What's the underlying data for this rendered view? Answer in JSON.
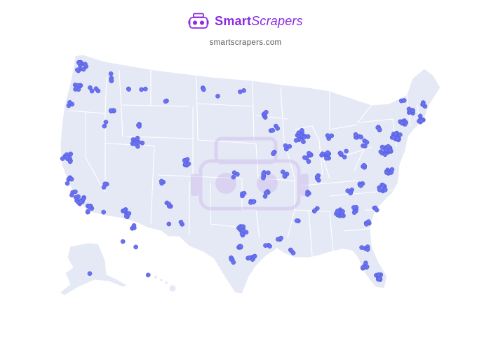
{
  "brand": {
    "name_part1": "Smart",
    "name_part2": "Scrapers",
    "domain": "smartscrapers.com",
    "logo_icon": "goggles-robot-icon",
    "accent_color": "#8a2be2"
  },
  "map": {
    "region": "United States",
    "land_color": "#e5e9f5",
    "border_color": "#ffffff",
    "marker_color": "#6a72f0",
    "watermark_icon": "goggles-robot-icon"
  }
}
